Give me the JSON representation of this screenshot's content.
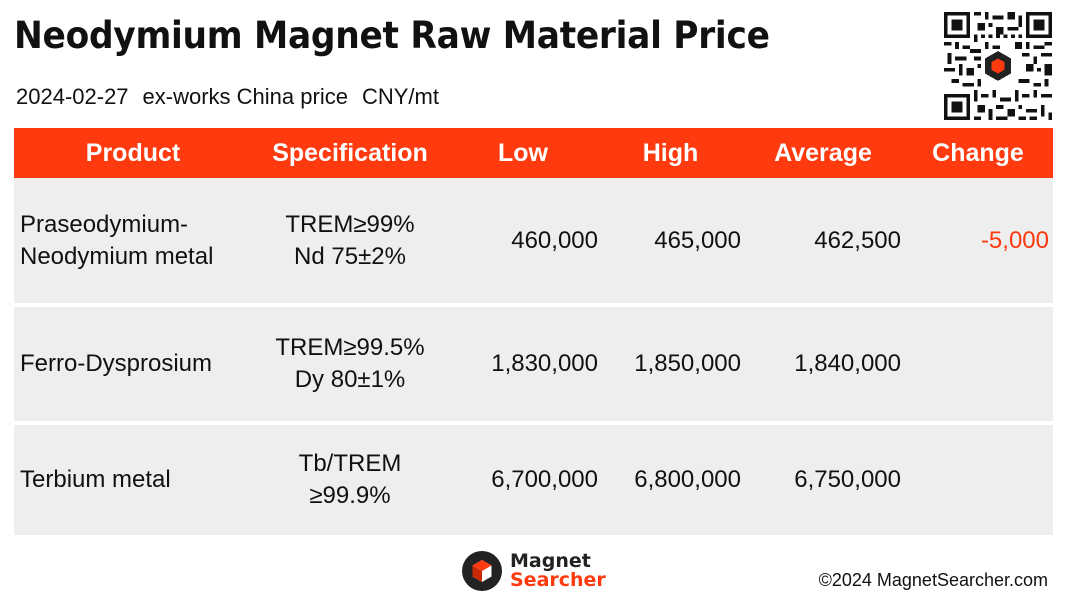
{
  "header": {
    "title": "Neodymium Magnet Raw Material Price",
    "date": "2024-02-27",
    "basis": "ex-works China price",
    "unit": "CNY/mt"
  },
  "table": {
    "columns": [
      "Product",
      "Specification",
      "Low",
      "High",
      "Average",
      "Change"
    ],
    "rows": [
      {
        "product": [
          "Praseodymium-",
          "Neodymium metal"
        ],
        "spec": [
          "TREM≥99%",
          "Nd 75±2%"
        ],
        "low": "460,000",
        "high": "465,000",
        "average": "462,500",
        "change": "-5,000"
      },
      {
        "product": [
          "Ferro-Dysprosium"
        ],
        "spec": [
          "TREM≥99.5%",
          "Dy 80±1%"
        ],
        "low": "1,830,000",
        "high": "1,850,000",
        "average": "1,840,000",
        "change": ""
      },
      {
        "product": [
          "Terbium metal"
        ],
        "spec": [
          "Tb/TREM",
          "≥99.9%"
        ],
        "low": "6,700,000",
        "high": "6,800,000",
        "average": "6,750,000",
        "change": ""
      }
    ]
  },
  "footer": {
    "logo_line1": "Magnet",
    "logo_line2": "Searcher",
    "copyright": "©2024 MagnetSearcher.com"
  },
  "colors": {
    "accent": "#ff3a0e",
    "row_bg": "#eeeeee",
    "text": "#111111"
  },
  "icons": {
    "qr": "qr-code-icon",
    "logo": "magnet-searcher-logo-icon"
  }
}
